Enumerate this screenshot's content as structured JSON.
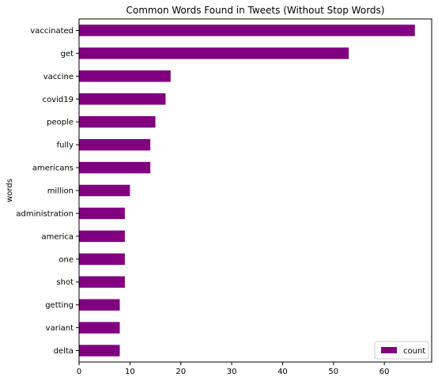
{
  "chart_data": {
    "type": "bar",
    "orientation": "horizontal",
    "title": "Common Words Found in Tweets (Without Stop Words)",
    "ylabel": "words",
    "xlabel": "",
    "categories": [
      "vaccinated",
      "get",
      "vaccine",
      "covid19",
      "people",
      "fully",
      "americans",
      "million",
      "administration",
      "america",
      "one",
      "shot",
      "getting",
      "variant",
      "delta"
    ],
    "series": [
      {
        "name": "count",
        "values": [
          66,
          53,
          18,
          17,
          15,
          14,
          14,
          10,
          9,
          9,
          9,
          9,
          8,
          8,
          8
        ],
        "color": "#800080"
      }
    ],
    "xlim": [
      0,
      69.3
    ],
    "xticks": [
      0,
      10,
      20,
      30,
      40,
      50,
      60
    ],
    "grid": false,
    "legend_position": "lower-right"
  }
}
